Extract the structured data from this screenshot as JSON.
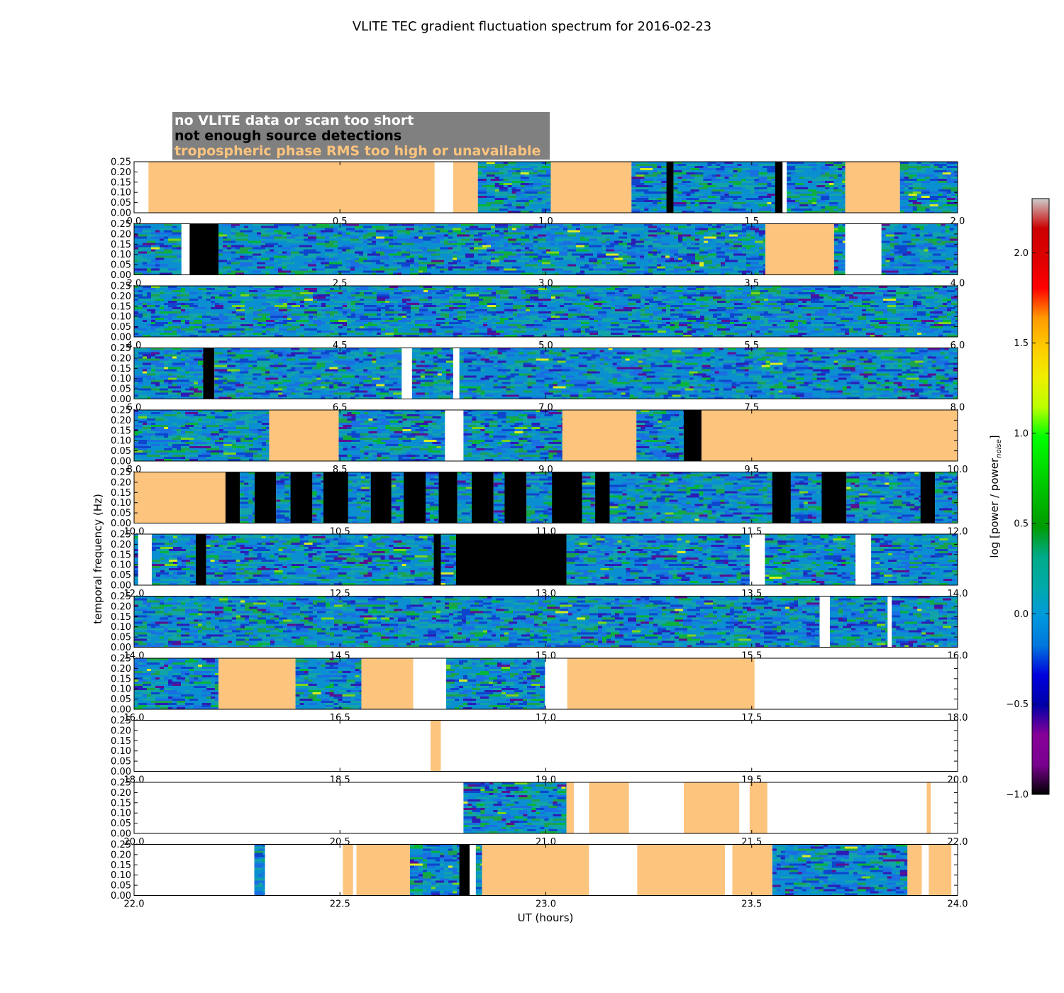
{
  "chart_data": {
    "type": "heatmap",
    "title": "VLITE TEC gradient fluctuation spectrum for 2016-02-23",
    "xlabel": "UT (hours)",
    "ylabel": "temporal frequency (Hz)",
    "ylim": [
      0,
      0.25
    ],
    "yticks": [
      "0.00",
      "0.05",
      "0.10",
      "0.15",
      "0.20",
      "0.25"
    ],
    "colorbar": {
      "label_main": "log [power / power",
      "label_sub": "noise",
      "label_end": "]",
      "range": [
        -1.0,
        2.3
      ],
      "ticks": [
        "−1.0",
        "−0.5",
        "0.0",
        "0.5",
        "1.0",
        "1.5",
        "2.0"
      ],
      "tick_values": [
        -1.0,
        -0.5,
        0.0,
        0.5,
        1.0,
        1.5,
        2.0
      ],
      "colormap": "nipy_spectral"
    },
    "legend": [
      {
        "label": "no VLITE data or scan too short",
        "color": "#ffffff"
      },
      {
        "label": "not enough source detections",
        "color": "#000000"
      },
      {
        "label": "tropospheric phase RMS too high or unavailable",
        "color": "#fdc47e"
      }
    ],
    "colors": {
      "none": "#ffffff",
      "det": "#000000",
      "trop": "#fdc47e",
      "legend_bg": "#808080"
    },
    "panels": [
      {
        "x_range": [
          0.0,
          2.0
        ],
        "xticks": [
          "0.0",
          "0.5",
          "1.0",
          "1.5",
          "2.0"
        ],
        "segments": [
          [
            "n",
            0.0,
            0.035
          ],
          [
            "t",
            0.035,
            0.73
          ],
          [
            "n",
            0.73,
            0.775
          ],
          [
            "t",
            0.775,
            0.835
          ],
          [
            "d",
            0.835,
            1.012
          ],
          [
            "t",
            1.012,
            1.208
          ],
          [
            "d",
            1.208,
            1.293
          ],
          [
            "b",
            1.293,
            1.31
          ],
          [
            "d",
            1.31,
            1.557
          ],
          [
            "b",
            1.557,
            1.575
          ],
          [
            "n",
            1.575,
            1.585
          ],
          [
            "d",
            1.585,
            1.727
          ],
          [
            "t",
            1.727,
            1.86
          ],
          [
            "d",
            1.86,
            2.0
          ]
        ]
      },
      {
        "x_range": [
          2.0,
          4.0
        ],
        "xticks": [
          "2.0",
          "2.5",
          "3.0",
          "3.5",
          "4.0"
        ],
        "segments": [
          [
            "d",
            2.0,
            2.115
          ],
          [
            "n",
            2.115,
            2.135
          ],
          [
            "b",
            2.135,
            2.205
          ],
          [
            "d",
            2.205,
            3.533
          ],
          [
            "t",
            3.533,
            3.7
          ],
          [
            "d",
            3.7,
            3.727
          ],
          [
            "n",
            3.727,
            3.815
          ],
          [
            "d",
            3.815,
            4.0
          ]
        ]
      },
      {
        "x_range": [
          4.0,
          6.0
        ],
        "xticks": [
          "4.0",
          "4.5",
          "5.0",
          "5.5",
          "6.0"
        ],
        "segments": [
          [
            "d",
            4.0,
            6.0
          ]
        ]
      },
      {
        "x_range": [
          6.0,
          8.0
        ],
        "xticks": [
          "6.0",
          "6.5",
          "7.0",
          "7.5",
          "8.0"
        ],
        "segments": [
          [
            "d",
            6.0,
            6.168
          ],
          [
            "b",
            6.168,
            6.195
          ],
          [
            "d",
            6.195,
            6.65
          ],
          [
            "n",
            6.65,
            6.675
          ],
          [
            "d",
            6.675,
            6.775
          ],
          [
            "n",
            6.775,
            6.79
          ],
          [
            "d",
            6.79,
            8.0
          ]
        ]
      },
      {
        "x_range": [
          8.0,
          10.0
        ],
        "xticks": [
          "8.0",
          "8.5",
          "9.0",
          "9.5",
          "10.0"
        ],
        "segments": [
          [
            "d",
            8.0,
            8.328
          ],
          [
            "t",
            8.328,
            8.497
          ],
          [
            "d",
            8.497,
            8.755
          ],
          [
            "n",
            8.755,
            8.8
          ],
          [
            "d",
            8.8,
            9.04
          ],
          [
            "t",
            9.04,
            9.22
          ],
          [
            "d",
            9.22,
            9.335
          ],
          [
            "b",
            9.335,
            9.378
          ],
          [
            "t",
            9.378,
            10.0
          ]
        ]
      },
      {
        "x_range": [
          10.0,
          12.0
        ],
        "xticks": [
          "10.0",
          "10.5",
          "11.0",
          "11.5",
          "12.0"
        ],
        "segments": [
          [
            "t",
            10.0,
            10.222
          ],
          [
            "b",
            10.222,
            10.257
          ],
          [
            "d",
            10.257,
            10.293
          ],
          [
            "b",
            10.293,
            10.345
          ],
          [
            "d",
            10.345,
            10.38
          ],
          [
            "b",
            10.38,
            10.433
          ],
          [
            "d",
            10.433,
            10.46
          ],
          [
            "b",
            10.46,
            10.52
          ],
          [
            "d",
            10.52,
            10.575
          ],
          [
            "b",
            10.575,
            10.625
          ],
          [
            "d",
            10.625,
            10.655
          ],
          [
            "b",
            10.655,
            10.708
          ],
          [
            "d",
            10.708,
            10.74
          ],
          [
            "b",
            10.74,
            10.785
          ],
          [
            "d",
            10.785,
            10.82
          ],
          [
            "b",
            10.82,
            10.873
          ],
          [
            "d",
            10.873,
            10.9
          ],
          [
            "b",
            10.9,
            10.953
          ],
          [
            "d",
            10.953,
            11.015
          ],
          [
            "b",
            11.015,
            11.088
          ],
          [
            "d",
            11.088,
            11.12
          ],
          [
            "b",
            11.12,
            11.155
          ],
          [
            "d",
            11.155,
            11.55
          ],
          [
            "b",
            11.55,
            11.595
          ],
          [
            "d",
            11.595,
            11.67
          ],
          [
            "b",
            11.67,
            11.73
          ],
          [
            "d",
            11.73,
            11.91
          ],
          [
            "b",
            11.91,
            11.945
          ],
          [
            "d",
            11.945,
            12.0
          ]
        ]
      },
      {
        "x_range": [
          12.0,
          14.0
        ],
        "xticks": [
          "12.0",
          "12.5",
          "13.0",
          "13.5",
          "14.0"
        ],
        "segments": [
          [
            "d",
            12.0,
            12.01
          ],
          [
            "n",
            12.01,
            12.043
          ],
          [
            "d",
            12.043,
            12.15
          ],
          [
            "b",
            12.15,
            12.175
          ],
          [
            "d",
            12.175,
            12.728
          ],
          [
            "b",
            12.728,
            12.745
          ],
          [
            "d",
            12.745,
            12.782
          ],
          [
            "b",
            12.782,
            13.05
          ],
          [
            "d",
            13.05,
            13.495
          ],
          [
            "n",
            13.495,
            13.532
          ],
          [
            "d",
            13.532,
            13.752
          ],
          [
            "n",
            13.752,
            13.79
          ],
          [
            "d",
            13.79,
            14.0
          ]
        ]
      },
      {
        "x_range": [
          14.0,
          16.0
        ],
        "xticks": [
          "14.0",
          "14.5",
          "15.0",
          "15.5",
          "16.0"
        ],
        "segments": [
          [
            "d",
            14.0,
            15.665
          ],
          [
            "n",
            15.665,
            15.69
          ],
          [
            "d",
            15.69,
            15.83
          ],
          [
            "n",
            15.83,
            15.84
          ],
          [
            "d",
            15.84,
            16.0
          ]
        ]
      },
      {
        "x_range": [
          16.0,
          18.0
        ],
        "xticks": [
          "16.0",
          "16.5",
          "17.0",
          "17.5",
          "18.0"
        ],
        "segments": [
          [
            "d",
            16.0,
            16.205
          ],
          [
            "t",
            16.205,
            16.392
          ],
          [
            "d",
            16.392,
            16.552
          ],
          [
            "t",
            16.552,
            16.678
          ],
          [
            "n",
            16.678,
            16.758
          ],
          [
            "d",
            16.758,
            16.998
          ],
          [
            "n",
            16.998,
            17.052
          ],
          [
            "t",
            17.052,
            17.507
          ],
          [
            "n",
            17.507,
            18.0
          ]
        ]
      },
      {
        "x_range": [
          18.0,
          20.0
        ],
        "xticks": [
          "18.0",
          "18.5",
          "19.0",
          "19.5",
          "20.0"
        ],
        "segments": [
          [
            "n",
            18.0,
            18.72
          ],
          [
            "t",
            18.72,
            18.745
          ],
          [
            "n",
            18.745,
            20.0
          ]
        ]
      },
      {
        "x_range": [
          20.0,
          22.0
        ],
        "xticks": [
          "20.0",
          "20.5",
          "21.0",
          "21.5",
          "22.0"
        ],
        "segments": [
          [
            "n",
            20.0,
            20.8
          ],
          [
            "d",
            20.8,
            21.05
          ],
          [
            "t",
            21.05,
            21.068
          ],
          [
            "n",
            21.068,
            21.105
          ],
          [
            "t",
            21.105,
            21.202
          ],
          [
            "n",
            21.202,
            21.335
          ],
          [
            "t",
            21.335,
            21.47
          ],
          [
            "n",
            21.47,
            21.495
          ],
          [
            "t",
            21.495,
            21.538
          ],
          [
            "n",
            21.538,
            21.925
          ],
          [
            "t",
            21.925,
            21.935
          ],
          [
            "n",
            21.935,
            22.0
          ]
        ]
      },
      {
        "x_range": [
          22.0,
          24.0
        ],
        "xticks": [
          "22.0",
          "22.5",
          "23.0",
          "23.5",
          "24.0"
        ],
        "segments": [
          [
            "n",
            22.0,
            22.292
          ],
          [
            "d",
            22.292,
            22.318
          ],
          [
            "n",
            22.318,
            22.507
          ],
          [
            "t",
            22.507,
            22.532
          ],
          [
            "n",
            22.532,
            22.54
          ],
          [
            "t",
            22.54,
            22.67
          ],
          [
            "d",
            22.67,
            22.79
          ],
          [
            "b",
            22.79,
            22.815
          ],
          [
            "n",
            22.815,
            22.83
          ],
          [
            "d",
            22.83,
            22.845
          ],
          [
            "t",
            22.845,
            23.105
          ],
          [
            "n",
            23.105,
            23.222
          ],
          [
            "t",
            23.222,
            23.435
          ],
          [
            "n",
            23.435,
            23.453
          ],
          [
            "t",
            23.453,
            23.55
          ],
          [
            "d",
            23.55,
            23.878
          ],
          [
            "t",
            23.878,
            23.913
          ],
          [
            "n",
            23.913,
            23.93
          ],
          [
            "t",
            23.93,
            23.985
          ],
          [
            "n",
            23.985,
            24.0
          ]
        ]
      }
    ]
  }
}
